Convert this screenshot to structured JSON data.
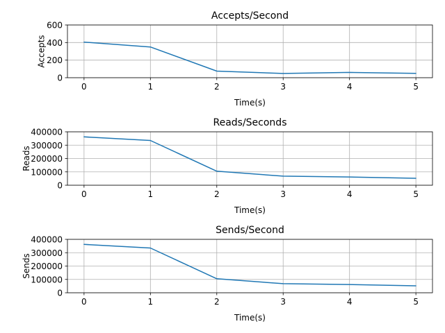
{
  "colors": {
    "series": "#1f77b4",
    "grid": "#b0b0b0"
  },
  "chart_data": [
    {
      "type": "line",
      "title": "Accepts/Second",
      "xlabel": "Time(s)",
      "ylabel": "Accepts",
      "x": [
        0,
        1,
        2,
        3,
        4,
        5
      ],
      "y": [
        405,
        350,
        75,
        48,
        60,
        50
      ],
      "xlim": [
        -0.25,
        5.25
      ],
      "ylim": [
        0,
        600
      ],
      "xticks": [
        0,
        1,
        2,
        3,
        4,
        5
      ],
      "yticks": [
        0,
        200,
        400,
        600
      ],
      "grid": true
    },
    {
      "type": "line",
      "title": "Reads/Seconds",
      "xlabel": "Time(s)",
      "ylabel": "Reads",
      "x": [
        0,
        1,
        2,
        3,
        4,
        5
      ],
      "y": [
        362000,
        335000,
        105000,
        68000,
        62000,
        52000
      ],
      "xlim": [
        -0.25,
        5.25
      ],
      "ylim": [
        0,
        400000
      ],
      "xticks": [
        0,
        1,
        2,
        3,
        4,
        5
      ],
      "yticks": [
        0,
        100000,
        200000,
        300000,
        400000
      ],
      "grid": true
    },
    {
      "type": "line",
      "title": "Sends/Second",
      "xlabel": "Time(s)",
      "ylabel": "Sends",
      "x": [
        0,
        1,
        2,
        3,
        4,
        5
      ],
      "y": [
        362000,
        335000,
        105000,
        68000,
        62000,
        52000
      ],
      "xlim": [
        -0.25,
        5.25
      ],
      "ylim": [
        0,
        400000
      ],
      "xticks": [
        0,
        1,
        2,
        3,
        4,
        5
      ],
      "yticks": [
        0,
        100000,
        200000,
        300000,
        400000
      ],
      "grid": true
    }
  ]
}
